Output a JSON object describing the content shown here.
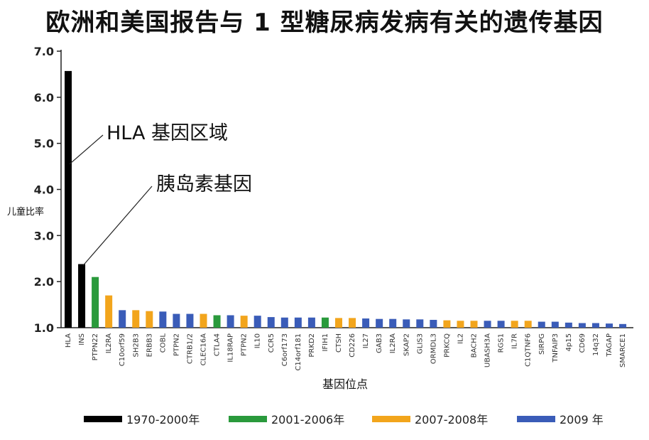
{
  "chart_data": {
    "type": "bar",
    "title": "欧洲和美国报告与 1 型糖尿病发病有关的遗传基因",
    "xlabel": "基因位点",
    "ylabel": "儿童比率",
    "ylim": [
      1.0,
      7.0
    ],
    "yticks": [
      "1.0",
      "2.0",
      "3.0",
      "4.0",
      "5.0",
      "6.0",
      "7.0"
    ],
    "grid": false,
    "legend_position": "bottom",
    "colors": {
      "period_1970_2000": "#000000",
      "period_2001_2006": "#2a9a3c",
      "period_2007_2008": "#f2a51c",
      "period_2009": "#3a5cb8"
    },
    "legend": [
      {
        "label": "1970-2000年",
        "color_key": "period_1970_2000"
      },
      {
        "label": "2001-2006年",
        "color_key": "period_2001_2006"
      },
      {
        "label": "2007-2008年",
        "color_key": "period_2007_2008"
      },
      {
        "label": "2009 年",
        "color_key": "period_2009"
      }
    ],
    "annotations": [
      {
        "text": "HLA 基因区域",
        "target_index": 0
      },
      {
        "text": "胰岛素基因",
        "target_index": 1
      }
    ],
    "categories": [
      "HLA",
      "INS",
      "PTPN22",
      "IL2RA",
      "C10orf59",
      "SH2B3",
      "ERBB3",
      "COBL",
      "PTPN2",
      "CTRB1/2",
      "CLEC16A",
      "CTLA4",
      "IL18RAP",
      "PTPN2",
      "IL10",
      "CCR5",
      "C6orf173",
      "C14orf181",
      "PRKD2",
      "IFIH1",
      "CTSH",
      "CD226",
      "IL27",
      "GAB3",
      "IL2RA",
      "SKAP2",
      "GLIS3",
      "ORMDL3",
      "PRKCQ",
      "IL2",
      "BACH2",
      "UBASH3A",
      "RGS1",
      "IL7R",
      "C1QTNF6",
      "SIRPG",
      "TNFAIP3",
      "4p15",
      "CD69",
      "14q32",
      "TAGAP",
      "SMARCE1"
    ],
    "values": [
      6.57,
      2.38,
      2.1,
      1.7,
      1.38,
      1.38,
      1.36,
      1.35,
      1.3,
      1.3,
      1.3,
      1.27,
      1.27,
      1.26,
      1.26,
      1.23,
      1.22,
      1.22,
      1.22,
      1.22,
      1.21,
      1.21,
      1.2,
      1.19,
      1.19,
      1.18,
      1.18,
      1.17,
      1.16,
      1.15,
      1.15,
      1.15,
      1.15,
      1.15,
      1.15,
      1.13,
      1.13,
      1.11,
      1.1,
      1.1,
      1.09,
      1.08
    ],
    "periods": [
      "period_1970_2000",
      "period_1970_2000",
      "period_2001_2006",
      "period_2007_2008",
      "period_2009",
      "period_2007_2008",
      "period_2007_2008",
      "period_2009",
      "period_2009",
      "period_2009",
      "period_2007_2008",
      "period_2001_2006",
      "period_2009",
      "period_2007_2008",
      "period_2009",
      "period_2009",
      "period_2009",
      "period_2009",
      "period_2009",
      "period_2001_2006",
      "period_2007_2008",
      "period_2007_2008",
      "period_2009",
      "period_2009",
      "period_2009",
      "period_2009",
      "period_2009",
      "period_2009",
      "period_2007_2008",
      "period_2007_2008",
      "period_2007_2008",
      "period_2009",
      "period_2009",
      "period_2007_2008",
      "period_2007_2008",
      "period_2009",
      "period_2009",
      "period_2009",
      "period_2009",
      "period_2009",
      "period_2009",
      "period_2009"
    ]
  }
}
